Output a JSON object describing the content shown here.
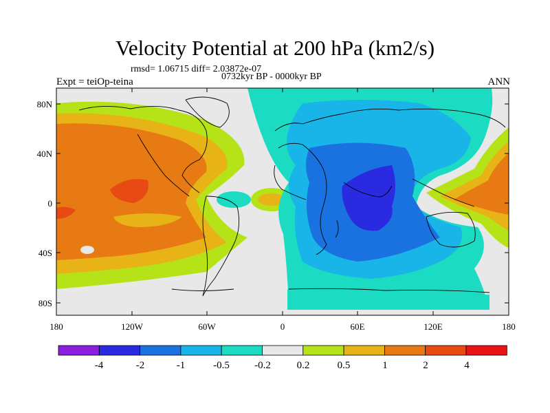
{
  "title": "Velocity Potential at 200 hPa (km2/s)",
  "stats": "rmsd= 1.06715 diff= 2.03872e-07",
  "experiment": "Expt = teiOp-teina",
  "period": "0732kyr BP - 0000kyr BP",
  "season": "ANN",
  "map": {
    "lon_ticks": [
      "180",
      "120W",
      "60W",
      "0",
      "60E",
      "120E",
      "180"
    ],
    "lat_ticks": [
      "80N",
      "40N",
      "0",
      "40S",
      "80S"
    ]
  },
  "colorbar": {
    "labels": [
      "-4",
      "-2",
      "-1",
      "-0.5",
      "-0.2",
      "0.2",
      "0.5",
      "1",
      "2",
      "4"
    ],
    "colors": [
      "#8a1fe0",
      "#2a2ae0",
      "#1a72e0",
      "#19b5e8",
      "#1bdcc2",
      "#e8e8e8",
      "#b5e317",
      "#e8b317",
      "#e87a14",
      "#e84a14",
      "#e81414"
    ]
  }
}
